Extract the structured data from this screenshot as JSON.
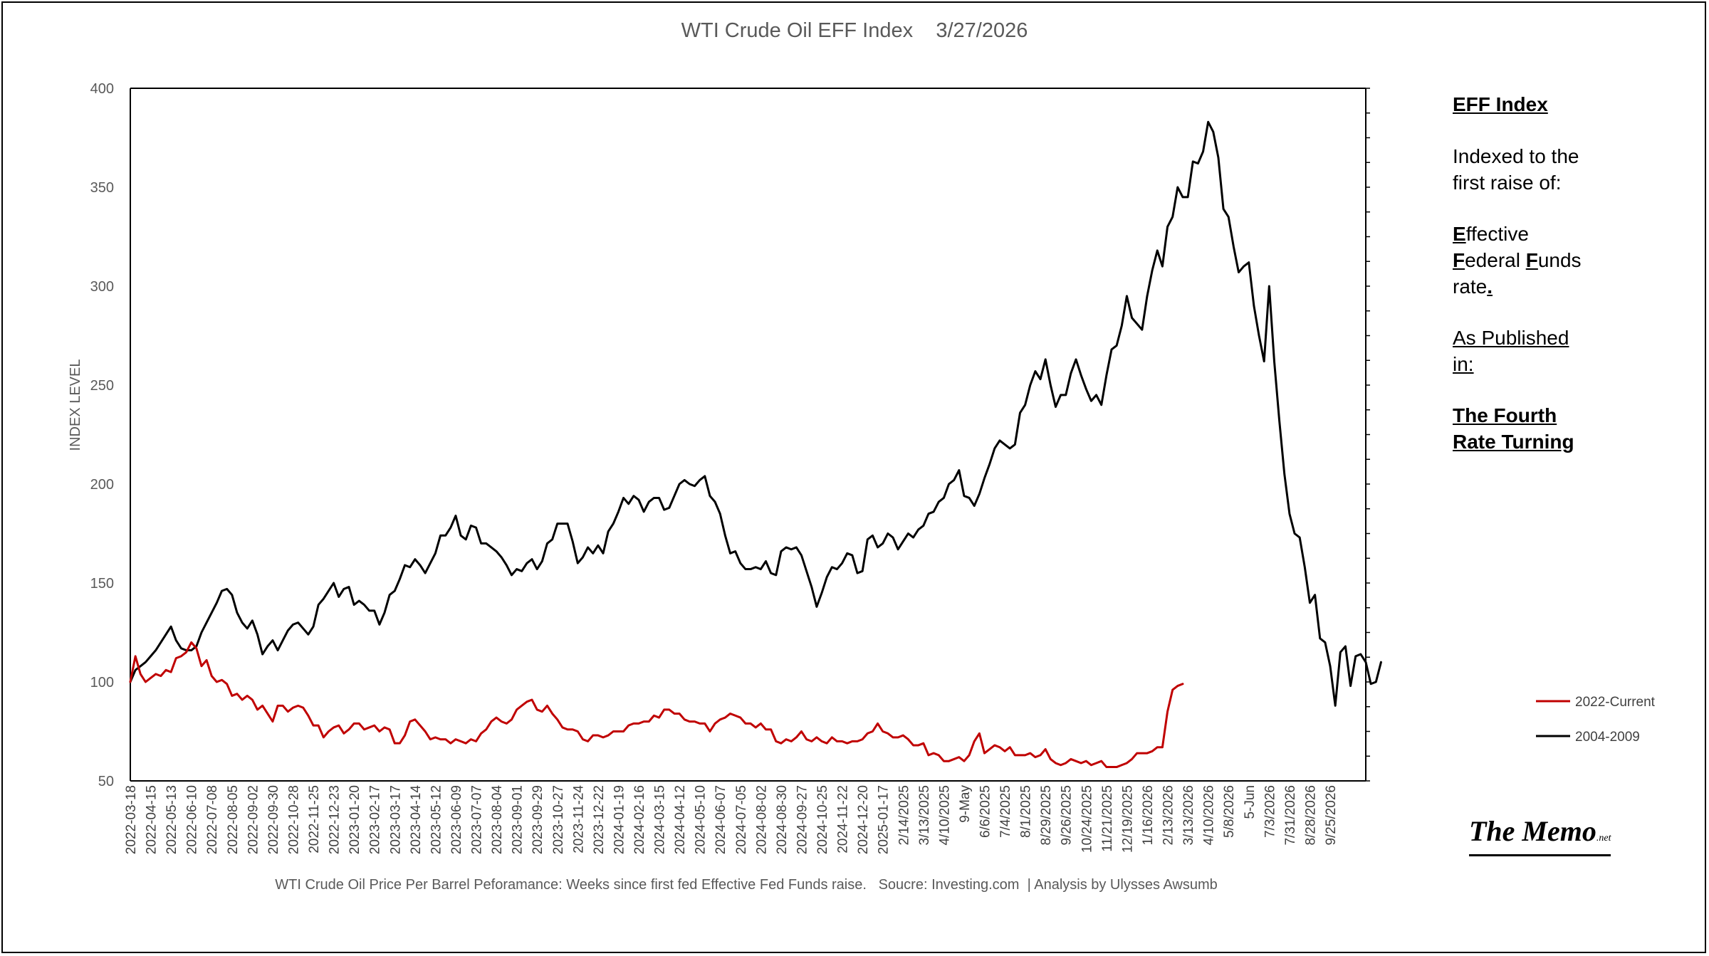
{
  "chart_data": {
    "type": "line",
    "title": "WTI Crude Oil EFF Index    3/27/2026",
    "ylabel": "INDEX LEVEL",
    "xlabel": "WTI Crude Oil Price Per Barrel Peforamance: Weeks since first fed Effective Fed Funds raise.   Soucre: Investing.com  | Analysis by Ulysses Awsumb",
    "ylim": [
      50,
      400
    ],
    "yticks": [
      50,
      100,
      150,
      200,
      250,
      300,
      350,
      400
    ],
    "n_weeks": 244,
    "legend_position": "right",
    "x_tick_labels": [
      "2022-03-18",
      "2022-04-15",
      "2022-05-13",
      "2022-06-10",
      "2022-07-08",
      "2022-08-05",
      "2022-09-02",
      "2022-09-30",
      "2022-10-28",
      "2022-11-25",
      "2022-12-23",
      "2023-01-20",
      "2023-02-17",
      "2023-03-17",
      "2023-04-14",
      "2023-05-12",
      "2023-06-09",
      "2023-07-07",
      "2023-08-04",
      "2023-09-01",
      "2023-09-29",
      "2023-10-27",
      "2023-11-24",
      "2023-12-22",
      "2024-01-19",
      "2024-02-16",
      "2024-03-15",
      "2024-04-12",
      "2024-05-10",
      "2024-06-07",
      "2024-07-05",
      "2024-08-02",
      "2024-08-30",
      "2024-09-27",
      "2024-10-25",
      "2024-11-22",
      "2024-12-20",
      "2025-01-17",
      "2/14/2025",
      "3/13/2025",
      "4/10/2025",
      "9-May",
      "6/6/2025",
      "7/4/2025",
      "8/1/2025",
      "8/29/2025",
      "9/26/2025",
      "10/24/2025",
      "11/21/2025",
      "12/19/2025",
      "1/16/2026",
      "2/13/2026",
      "3/13/2026",
      "4/10/2026",
      "5/8/2026",
      "5-Jun",
      "7/3/2026",
      "7/31/2026",
      "8/28/2026",
      "9/25/2026"
    ],
    "series": [
      {
        "name": "2004-2009",
        "color": "#000000",
        "values": [
          100,
          106,
          108,
          110,
          113,
          116,
          120,
          124,
          128,
          121,
          117,
          116,
          116,
          118,
          125,
          130,
          135,
          140,
          146,
          147,
          144,
          135,
          130,
          127,
          131,
          124,
          114,
          118,
          121,
          116,
          121,
          126,
          129,
          130,
          127,
          124,
          128,
          139,
          142,
          146,
          150,
          143,
          147,
          148,
          139,
          141,
          139,
          136,
          136,
          129,
          135,
          144,
          146,
          152,
          159,
          158,
          162,
          159,
          155,
          160,
          165,
          174,
          174,
          178,
          184,
          174,
          172,
          179,
          178,
          170,
          170,
          168,
          166,
          163,
          159,
          154,
          157,
          156,
          160,
          162,
          157,
          161,
          170,
          172,
          180,
          180,
          180,
          171,
          160,
          163,
          168,
          165,
          169,
          165,
          176,
          180,
          186,
          193,
          190,
          194,
          192,
          186,
          191,
          193,
          193,
          187,
          188,
          194,
          200,
          202,
          200,
          199,
          202,
          204,
          194,
          191,
          185,
          174,
          165,
          166,
          160,
          157,
          157,
          158,
          157,
          161,
          155,
          154,
          166,
          168,
          167,
          168,
          164,
          156,
          148,
          138,
          145,
          153,
          158,
          157,
          160,
          165,
          164,
          155,
          156,
          172,
          174,
          168,
          170,
          175,
          173,
          167,
          171,
          175,
          173,
          177,
          179,
          185,
          186,
          191,
          193,
          200,
          202,
          207,
          194,
          193,
          189,
          195,
          203,
          210,
          218,
          222,
          220,
          218,
          220,
          236,
          240,
          250,
          257,
          253,
          263,
          250,
          239,
          245,
          245,
          256,
          263,
          255,
          248,
          242,
          245,
          240,
          255,
          268,
          270,
          280,
          295,
          284,
          281,
          278,
          295,
          308,
          318,
          310,
          330,
          335,
          350,
          345,
          345,
          363,
          362,
          368,
          383,
          378,
          365,
          339,
          335,
          320,
          307,
          310,
          312,
          290,
          275,
          262,
          300,
          262,
          232,
          205,
          185,
          175,
          173,
          158,
          140,
          144,
          122,
          120,
          108,
          88,
          115,
          118,
          98,
          113,
          114,
          110,
          99,
          100,
          110
        ]
      },
      {
        "name": "2022-Current",
        "color": "#c00000",
        "values": [
          100,
          113,
          104,
          100,
          102,
          104,
          103,
          106,
          105,
          112,
          113,
          115,
          120,
          117,
          108,
          111,
          103,
          100,
          101,
          99,
          93,
          94,
          91,
          93,
          91,
          86,
          88,
          84,
          80,
          88,
          88,
          85,
          87,
          88,
          87,
          83,
          78,
          78,
          72,
          75,
          77,
          78,
          74,
          76,
          79,
          79,
          76,
          77,
          78,
          75,
          77,
          76,
          69,
          69,
          73,
          80,
          81,
          78,
          75,
          71,
          72,
          71,
          71,
          69,
          71,
          70,
          69,
          71,
          70,
          74,
          76,
          80,
          82,
          80,
          79,
          81,
          86,
          88,
          90,
          91,
          86,
          85,
          88,
          84,
          81,
          77,
          76,
          76,
          75,
          71,
          70,
          73,
          73,
          72,
          73,
          75,
          75,
          75,
          78,
          79,
          79,
          80,
          80,
          83,
          82,
          86,
          86,
          84,
          84,
          81,
          80,
          80,
          79,
          79,
          75,
          79,
          81,
          82,
          84,
          83,
          82,
          79,
          79,
          77,
          79,
          76,
          76,
          70,
          69,
          71,
          70,
          72,
          75,
          71,
          70,
          72,
          70,
          69,
          72,
          70,
          70,
          69,
          70,
          70,
          71,
          74,
          75,
          79,
          75,
          74,
          72,
          72,
          73,
          71,
          68,
          68,
          69,
          63,
          64,
          63,
          60,
          60,
          61,
          62,
          60,
          63,
          70,
          74,
          64,
          66,
          68,
          67,
          65,
          67,
          63,
          63,
          63,
          64,
          62,
          63,
          66,
          61,
          59,
          58,
          59,
          61,
          60,
          59,
          60,
          58,
          59,
          60,
          57,
          57,
          57,
          58,
          59,
          61,
          64,
          64,
          64,
          65,
          67,
          67,
          85,
          96,
          98,
          99
        ]
      }
    ]
  },
  "sidebar": {
    "heading": "EFF Index",
    "line1": "Indexed to the",
    "line2": "first raise of:",
    "e_letter": "E",
    "e_rest": "ffective",
    "f1_letter": "F",
    "f1_rest": "ederal ",
    "f2_letter": "F",
    "f2_rest": "unds",
    "rate_word": "rate",
    "rate_dot": ".",
    "published1": "As Published",
    "published2": "in:",
    "book1": "The Fourth",
    "book2": "Rate Turning"
  },
  "logo": {
    "main": "The Memo",
    "suffix": ".net"
  }
}
